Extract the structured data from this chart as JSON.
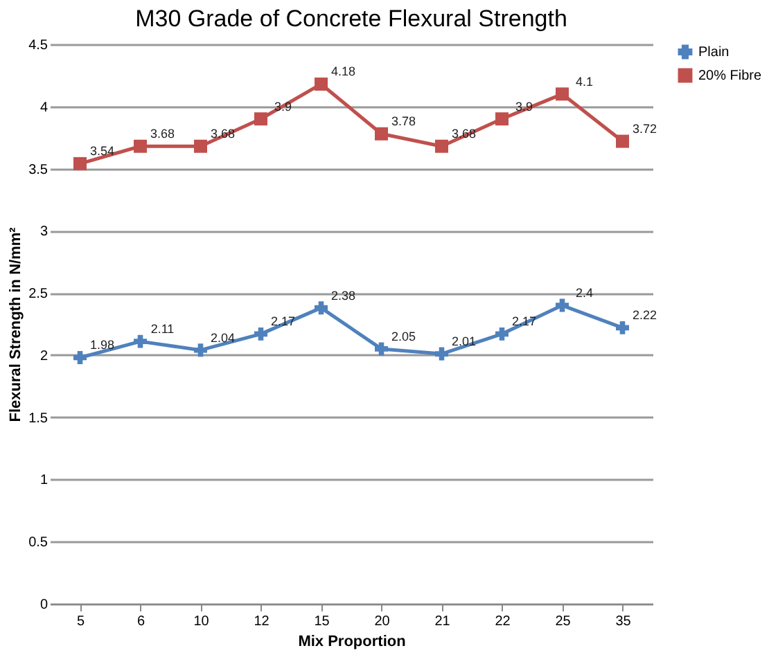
{
  "chart_data": {
    "type": "line",
    "title": "M30 Grade of Concrete Flexural Strength",
    "xlabel": "Mix Proportion",
    "ylabel": "Flexural Strength in N/mm²",
    "categories": [
      "5",
      "6",
      "10",
      "12",
      "15",
      "20",
      "21",
      "22",
      "25",
      "35"
    ],
    "series": [
      {
        "name": "Plain",
        "color": "#4f81bd",
        "marker": "cross",
        "values": [
          1.98,
          2.11,
          2.04,
          2.17,
          2.38,
          2.05,
          2.01,
          2.17,
          2.4,
          2.22
        ]
      },
      {
        "name": "20% Fibre",
        "color": "#c0504d",
        "marker": "square",
        "values": [
          3.54,
          3.68,
          3.68,
          3.9,
          4.18,
          3.78,
          3.68,
          3.9,
          4.1,
          3.72
        ]
      }
    ],
    "ylim": [
      0,
      4.5
    ],
    "yticks": [
      0,
      0.5,
      1,
      1.5,
      2,
      2.5,
      3,
      3.5,
      4,
      4.5
    ],
    "grid": "y",
    "legend": "right",
    "data_labels": true
  }
}
